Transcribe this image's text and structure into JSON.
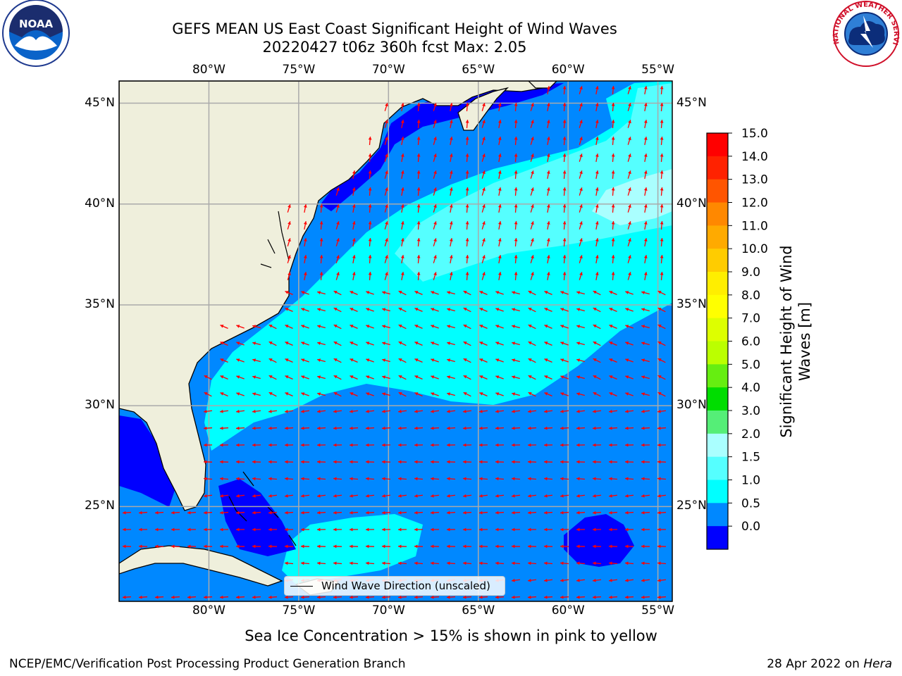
{
  "title": {
    "line1": "GEFS MEAN US East Coast Significant Height of Wind Waves",
    "line2": "20220427 t06z 360h fcst   Max: 2.05"
  },
  "axes": {
    "lon_labels": [
      "80°W",
      "75°W",
      "70°W",
      "65°W",
      "60°W",
      "55°W"
    ],
    "lat_labels": [
      "45°N",
      "40°N",
      "35°N",
      "30°N",
      "25°N"
    ],
    "lon_values": [
      -80,
      -75,
      -70,
      -65,
      -60,
      -55
    ],
    "lat_values": [
      45,
      40,
      35,
      30,
      25
    ],
    "lon_range": [
      -85,
      -54.2
    ],
    "lat_range": [
      20.3,
      46.1
    ]
  },
  "colorbar": {
    "label": "Significant Height of Wind Waves [m]",
    "label_line1": "Significant Height of Wind",
    "label_line2": "Waves [m]",
    "ticks": [
      "15.0",
      "14.0",
      "13.0",
      "12.0",
      "11.0",
      "10.0",
      "9.0",
      "8.0",
      "7.0",
      "6.0",
      "5.0",
      "4.0",
      "3.0",
      "2.0",
      "1.5",
      "1.0",
      "0.5",
      "0.0"
    ],
    "colors": [
      "#ff0000",
      "#ff2200",
      "#ff5500",
      "#ff8800",
      "#ffaa00",
      "#ffcc00",
      "#ffee00",
      "#ffff00",
      "#ddff00",
      "#bbff00",
      "#66ee11",
      "#00dd00",
      "#55ee77",
      "#aaffff",
      "#55ffff",
      "#00ffff",
      "#0088ff",
      "#0000ff"
    ]
  },
  "legend": {
    "text": "Wind Wave Direction (unscaled)"
  },
  "footer": {
    "sea_ice_note": "Sea Ice Concentration > 15% is shown in pink to yellow",
    "left": "NCEP/EMC/Verification Post Processing Product Generation Branch",
    "date": "28 Apr 2022 on ",
    "machine": "Hera"
  },
  "logos": {
    "left": "noara-logo",
    "right": "nws-logo",
    "noaa_text": "NOAA",
    "nws_text": "NATIONAL WEATHER SERVICE"
  },
  "style": {
    "land": "#efefdc",
    "ocean_low": "#0000ff",
    "ocean_mid": "#0088ff",
    "ocean_high": "#00ffff",
    "ocean_higher": "#55ffff",
    "arrow": "#ff0000",
    "grid": "#aaaaaa"
  }
}
